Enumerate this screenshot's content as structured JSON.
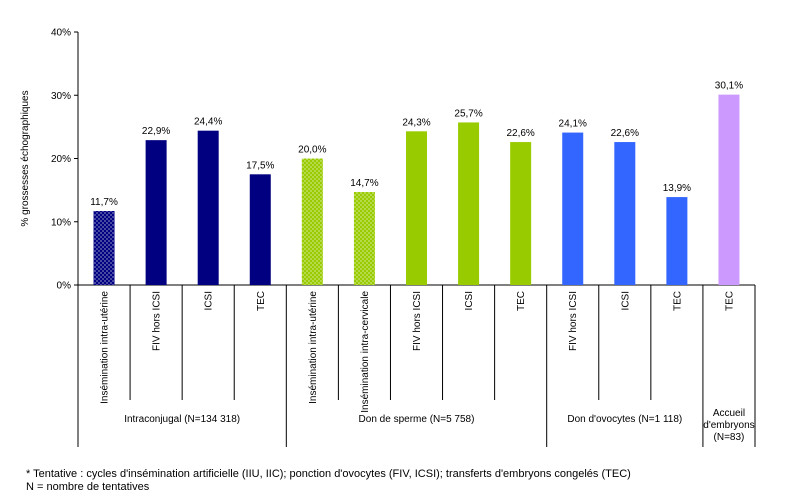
{
  "chart_data": {
    "type": "bar",
    "ylabel": "% grossesses échographiques",
    "ylim": [
      0,
      40
    ],
    "yticks": [
      "0%",
      "10%",
      "20%",
      "30%",
      "40%"
    ],
    "grid": false,
    "legend": "none",
    "categories": [
      "Insémination intra-utérine",
      "FIV hors ICSI",
      "ICSI",
      "TEC",
      "Insémination intra-utérine",
      "Insémination intra-cervicale",
      "FIV hors ICSI",
      "ICSI",
      "TEC",
      "FIV hors ICSI",
      "ICSI",
      "TEC",
      "TEC"
    ],
    "values": [
      11.7,
      22.9,
      24.4,
      17.5,
      20.0,
      14.7,
      24.3,
      25.7,
      22.6,
      24.1,
      22.6,
      13.9,
      30.1
    ],
    "value_labels": [
      "11,7%",
      "22,9%",
      "24,4%",
      "17,5%",
      "20,0%",
      "14,7%",
      "24,3%",
      "25,7%",
      "22,6%",
      "24,1%",
      "22,6%",
      "13,9%",
      "30,1%"
    ],
    "patterns": [
      "dotted",
      "solid",
      "solid",
      "solid",
      "dotted",
      "dotted",
      "solid",
      "solid",
      "solid",
      "solid",
      "solid",
      "solid",
      "solid"
    ],
    "groups": [
      {
        "label": [
          "Intraconjugal (N=134 318)"
        ],
        "count": 4,
        "color": "#000080"
      },
      {
        "label": [
          "Don de sperme (N=5 758)"
        ],
        "count": 5,
        "color": "#99CC00"
      },
      {
        "label": [
          "Don d'ovocytes (N=1 118)"
        ],
        "count": 3,
        "color": "#3366FF"
      },
      {
        "label": [
          "Accueil",
          "d'embryons",
          "(N=83)"
        ],
        "count": 1,
        "color": "#CC99FF"
      }
    ]
  },
  "footnotes": {
    "line1": "* Tentative : cycles d'insémination artificielle (IIU, IIC); ponction d'ovocytes (FIV, ICSI); transferts d'embryons congelés (TEC)",
    "line2": "N = nombre de tentatives"
  }
}
